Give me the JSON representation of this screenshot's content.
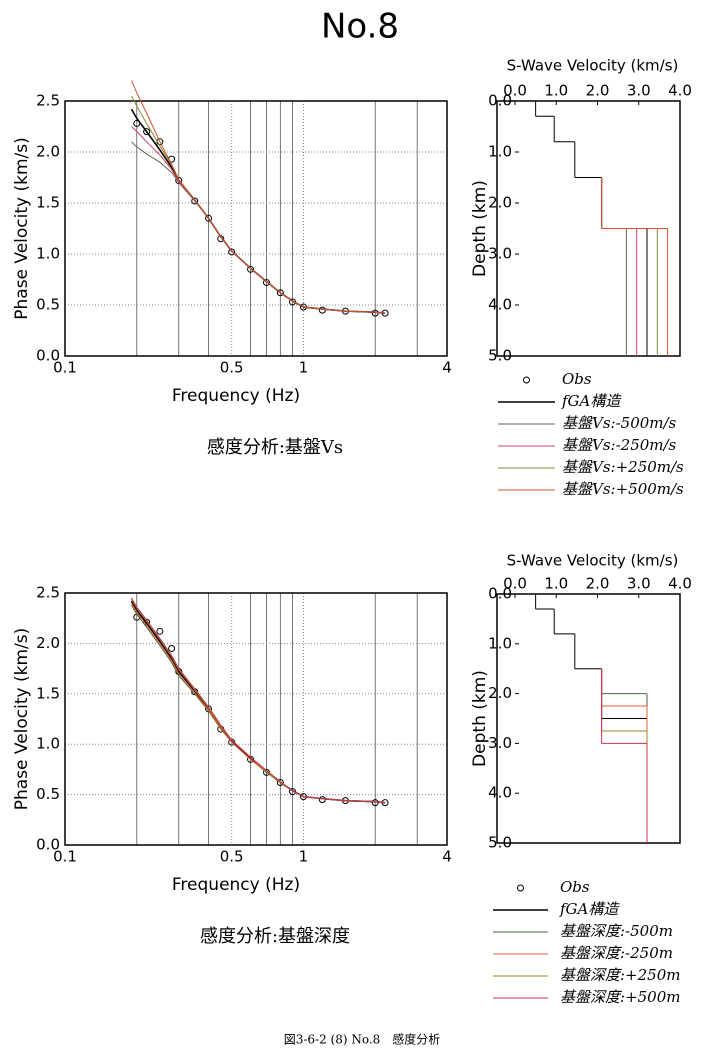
{
  "title": "No.8",
  "caption": "図3-6-2 (8) No.8　感度分析",
  "chart_data": [
    {
      "type": "line",
      "xscale": "log",
      "xlabel": "Frequency (Hz)",
      "ylabel": "Phase Velocity (km/s)",
      "caption": "感度分析:基盤Vs",
      "xlim": [
        0.1,
        4
      ],
      "xticks": [
        0.1,
        0.5,
        1,
        4
      ],
      "xminor": [
        0.2,
        0.3,
        0.4,
        0.6,
        0.7,
        0.8,
        0.9,
        2,
        3
      ],
      "ylim": [
        0,
        2.5
      ],
      "yticks": [
        {
          "value": 0,
          "label": "0.0"
        },
        {
          "value": 0.5,
          "label": "0.5"
        },
        {
          "value": 1,
          "label": "1.0"
        },
        {
          "value": 1.5,
          "label": "1.5"
        },
        {
          "value": 2,
          "label": "2.0"
        },
        {
          "value": 2.5,
          "label": "2.5"
        }
      ],
      "grid": true,
      "x": [
        0.19,
        0.2,
        0.22,
        0.25,
        0.28,
        0.3,
        0.35,
        0.4,
        0.45,
        0.5,
        0.6,
        0.7,
        0.8,
        0.9,
        1.0,
        1.2,
        1.5,
        2.0,
        2.2
      ],
      "series": [
        {
          "name": "Obs",
          "color": "#000000",
          "marker": "circle",
          "values": [
            null,
            2.28,
            2.2,
            2.1,
            1.93,
            1.72,
            1.52,
            1.35,
            1.15,
            1.02,
            0.85,
            0.72,
            0.62,
            0.53,
            0.48,
            0.45,
            0.44,
            0.42,
            0.42
          ]
        },
        {
          "name": "fGA構造",
          "color": "#000000",
          "values": [
            2.42,
            2.33,
            2.2,
            2.02,
            1.85,
            1.72,
            1.53,
            1.35,
            1.17,
            1.03,
            0.86,
            0.73,
            0.62,
            0.54,
            0.48,
            0.46,
            0.44,
            0.43,
            0.42
          ]
        },
        {
          "name": "基盤Vs:-500m/s",
          "color": "#5a6a50",
          "values": [
            2.1,
            2.05,
            1.98,
            1.9,
            1.8,
            1.7,
            1.52,
            1.35,
            1.17,
            1.03,
            0.86,
            0.73,
            0.62,
            0.54,
            0.48,
            0.46,
            0.44,
            0.43,
            0.42
          ]
        },
        {
          "name": "基盤Vs:-250m/s",
          "color": "#d04060",
          "values": [
            2.25,
            2.2,
            2.1,
            1.97,
            1.83,
            1.71,
            1.53,
            1.35,
            1.17,
            1.03,
            0.86,
            0.73,
            0.62,
            0.54,
            0.48,
            0.46,
            0.44,
            0.43,
            0.42
          ]
        },
        {
          "name": "基盤Vs:+250m/s",
          "color": "#8a8a30",
          "values": [
            2.55,
            2.45,
            2.28,
            2.06,
            1.87,
            1.73,
            1.53,
            1.35,
            1.17,
            1.03,
            0.86,
            0.73,
            0.62,
            0.54,
            0.48,
            0.46,
            0.44,
            0.43,
            0.42
          ]
        },
        {
          "name": "基盤Vs:+500m/s",
          "color": "#d05030",
          "values": [
            2.7,
            2.58,
            2.38,
            2.1,
            1.88,
            1.73,
            1.53,
            1.35,
            1.17,
            1.03,
            0.86,
            0.73,
            0.62,
            0.54,
            0.48,
            0.46,
            0.44,
            0.43,
            0.42
          ]
        }
      ]
    },
    {
      "type": "profile",
      "title": "S-Wave Velocity (km/s)",
      "ylabel": "Depth (km)",
      "yreverse": true,
      "xlim": [
        0,
        4
      ],
      "xticks": [
        {
          "value": 0,
          "label": "0.0"
        },
        {
          "value": 1,
          "label": "1.0"
        },
        {
          "value": 2,
          "label": "2.0"
        },
        {
          "value": 3,
          "label": "3.0"
        },
        {
          "value": 4,
          "label": "4.0"
        }
      ],
      "ylim": [
        0,
        5
      ],
      "yticks": [
        {
          "value": 0,
          "label": "0.0"
        },
        {
          "value": 1,
          "label": "1.0"
        },
        {
          "value": 2,
          "label": "2.0"
        },
        {
          "value": 3,
          "label": "3.0"
        },
        {
          "value": 4,
          "label": "4.0"
        },
        {
          "value": 5,
          "label": "5.0"
        }
      ],
      "series": [
        {
          "color": "#000000",
          "depth": [
            0,
            0.3,
            0.8,
            1.5,
            2.5
          ],
          "vs": [
            0.5,
            0.95,
            1.45,
            2.1,
            3.2
          ]
        },
        {
          "color": "#5a6a50",
          "depth": [
            2.5
          ],
          "vs": [
            2.7
          ]
        },
        {
          "color": "#d04060",
          "depth": [
            2.5
          ],
          "vs": [
            2.95
          ]
        },
        {
          "color": "#8a8a30",
          "depth": [
            2.5
          ],
          "vs": [
            3.45
          ]
        },
        {
          "color": "#d05030",
          "depth": [
            2.5
          ],
          "vs": [
            3.7
          ]
        }
      ]
    },
    {
      "type": "line",
      "xscale": "log",
      "xlabel": "Frequency (Hz)",
      "ylabel": "Phase Velocity (km/s)",
      "caption": "感度分析:基盤深度",
      "xlim": [
        0.1,
        4
      ],
      "xticks": [
        0.1,
        0.5,
        1,
        4
      ],
      "xminor": [
        0.2,
        0.3,
        0.4,
        0.6,
        0.7,
        0.8,
        0.9,
        2,
        3
      ],
      "ylim": [
        0,
        2.5
      ],
      "yticks": [
        {
          "value": 0,
          "label": "0.0"
        },
        {
          "value": 0.5,
          "label": "0.5"
        },
        {
          "value": 1,
          "label": "1.0"
        },
        {
          "value": 1.5,
          "label": "1.5"
        },
        {
          "value": 2,
          "label": "2.0"
        },
        {
          "value": 2.5,
          "label": "2.5"
        }
      ],
      "grid": true,
      "x": [
        0.19,
        0.2,
        0.22,
        0.25,
        0.28,
        0.3,
        0.35,
        0.4,
        0.45,
        0.5,
        0.6,
        0.7,
        0.8,
        0.9,
        1.0,
        1.2,
        1.5,
        2.0,
        2.2
      ],
      "series": [
        {
          "name": "Obs",
          "color": "#000000",
          "marker": "circle",
          "values": [
            null,
            2.26,
            2.21,
            2.12,
            1.95,
            1.72,
            1.52,
            1.35,
            1.15,
            1.02,
            0.85,
            0.72,
            0.62,
            0.53,
            0.48,
            0.45,
            0.44,
            0.42,
            0.42
          ]
        },
        {
          "name": "fGA構造",
          "color": "#000000",
          "values": [
            2.42,
            2.33,
            2.2,
            2.02,
            1.85,
            1.72,
            1.53,
            1.35,
            1.17,
            1.03,
            0.86,
            0.73,
            0.62,
            0.54,
            0.48,
            0.46,
            0.44,
            0.43,
            0.42
          ]
        },
        {
          "name": "基盤深度:-500m",
          "color": "#4a6a3a",
          "values": [
            2.38,
            2.29,
            2.16,
            1.98,
            1.81,
            1.68,
            1.5,
            1.33,
            1.15,
            1.02,
            0.85,
            0.72,
            0.62,
            0.54,
            0.48,
            0.46,
            0.44,
            0.43,
            0.42
          ]
        },
        {
          "name": "基盤深度:-250m",
          "color": "#e06030",
          "values": [
            2.4,
            2.31,
            2.18,
            2.0,
            1.83,
            1.7,
            1.51,
            1.34,
            1.16,
            1.02,
            0.85,
            0.73,
            0.62,
            0.54,
            0.48,
            0.46,
            0.44,
            0.43,
            0.42
          ]
        },
        {
          "name": "基盤深度:+250m",
          "color": "#9a8a20",
          "values": [
            2.44,
            2.35,
            2.22,
            2.04,
            1.87,
            1.74,
            1.54,
            1.36,
            1.18,
            1.04,
            0.87,
            0.73,
            0.62,
            0.54,
            0.48,
            0.46,
            0.44,
            0.43,
            0.42
          ]
        },
        {
          "name": "基盤深度:+500m",
          "color": "#d03050",
          "values": [
            2.45,
            2.36,
            2.23,
            2.05,
            1.88,
            1.75,
            1.55,
            1.37,
            1.19,
            1.04,
            0.87,
            0.74,
            0.63,
            0.54,
            0.48,
            0.46,
            0.44,
            0.43,
            0.42
          ]
        }
      ]
    },
    {
      "type": "profile",
      "title": "S-Wave Velocity (km/s)",
      "ylabel": "Depth (km)",
      "yreverse": true,
      "xlim": [
        0,
        4
      ],
      "xticks": [
        {
          "value": 0,
          "label": "0.0"
        },
        {
          "value": 1,
          "label": "1.0"
        },
        {
          "value": 2,
          "label": "2.0"
        },
        {
          "value": 3,
          "label": "3.0"
        },
        {
          "value": 4,
          "label": "4.0"
        }
      ],
      "ylim": [
        0,
        5
      ],
      "yticks": [
        {
          "value": 0,
          "label": "0.0"
        },
        {
          "value": 1,
          "label": "1.0"
        },
        {
          "value": 2,
          "label": "2.0"
        },
        {
          "value": 3,
          "label": "3.0"
        },
        {
          "value": 4,
          "label": "4.0"
        },
        {
          "value": 5,
          "label": "5.0"
        }
      ],
      "series": [
        {
          "color": "#000000",
          "depth": [
            0,
            0.3,
            0.8,
            1.5,
            2.5
          ],
          "vs": [
            0.5,
            0.95,
            1.45,
            2.1,
            3.2
          ]
        },
        {
          "color": "#4a6a3a",
          "depth": [
            2.0
          ],
          "vs": [
            3.2
          ]
        },
        {
          "color": "#e06030",
          "depth": [
            2.25
          ],
          "vs": [
            3.2
          ]
        },
        {
          "color": "#9a8a20",
          "depth": [
            2.75
          ],
          "vs": [
            3.2
          ]
        },
        {
          "color": "#d03050",
          "depth": [
            3.0
          ],
          "vs": [
            3.2
          ]
        }
      ]
    }
  ]
}
